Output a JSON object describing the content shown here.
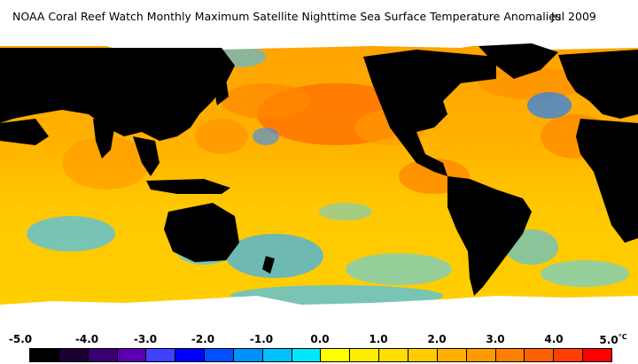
{
  "header": {
    "title": "NOAA Coral Reef Watch Monthly Maximum Satellite Nighttime Sea Surface Temperature Anomalies",
    "date": "Jul 2009"
  },
  "map": {
    "land_color": "#000000",
    "ice_color": "#ffffff",
    "ocean_base_color": "#ffc000"
  },
  "legend": {
    "unit": "°C",
    "ticks": [
      "-5.0",
      "-4.0",
      "-3.0",
      "-2.0",
      "-1.0",
      "0.0",
      "1.0",
      "2.0",
      "3.0",
      "4.0",
      "5.0"
    ],
    "colors": [
      "#000000",
      "#1a0033",
      "#3a0073",
      "#5a00b0",
      "#4040ff",
      "#0000ff",
      "#0050ff",
      "#0090ff",
      "#00c0ff",
      "#00e8ff",
      "#ffff00",
      "#ffee00",
      "#ffdd00",
      "#ffcc00",
      "#ffb000",
      "#ff9a00",
      "#ff8000",
      "#ff6000",
      "#ff4000",
      "#ff0000"
    ]
  }
}
